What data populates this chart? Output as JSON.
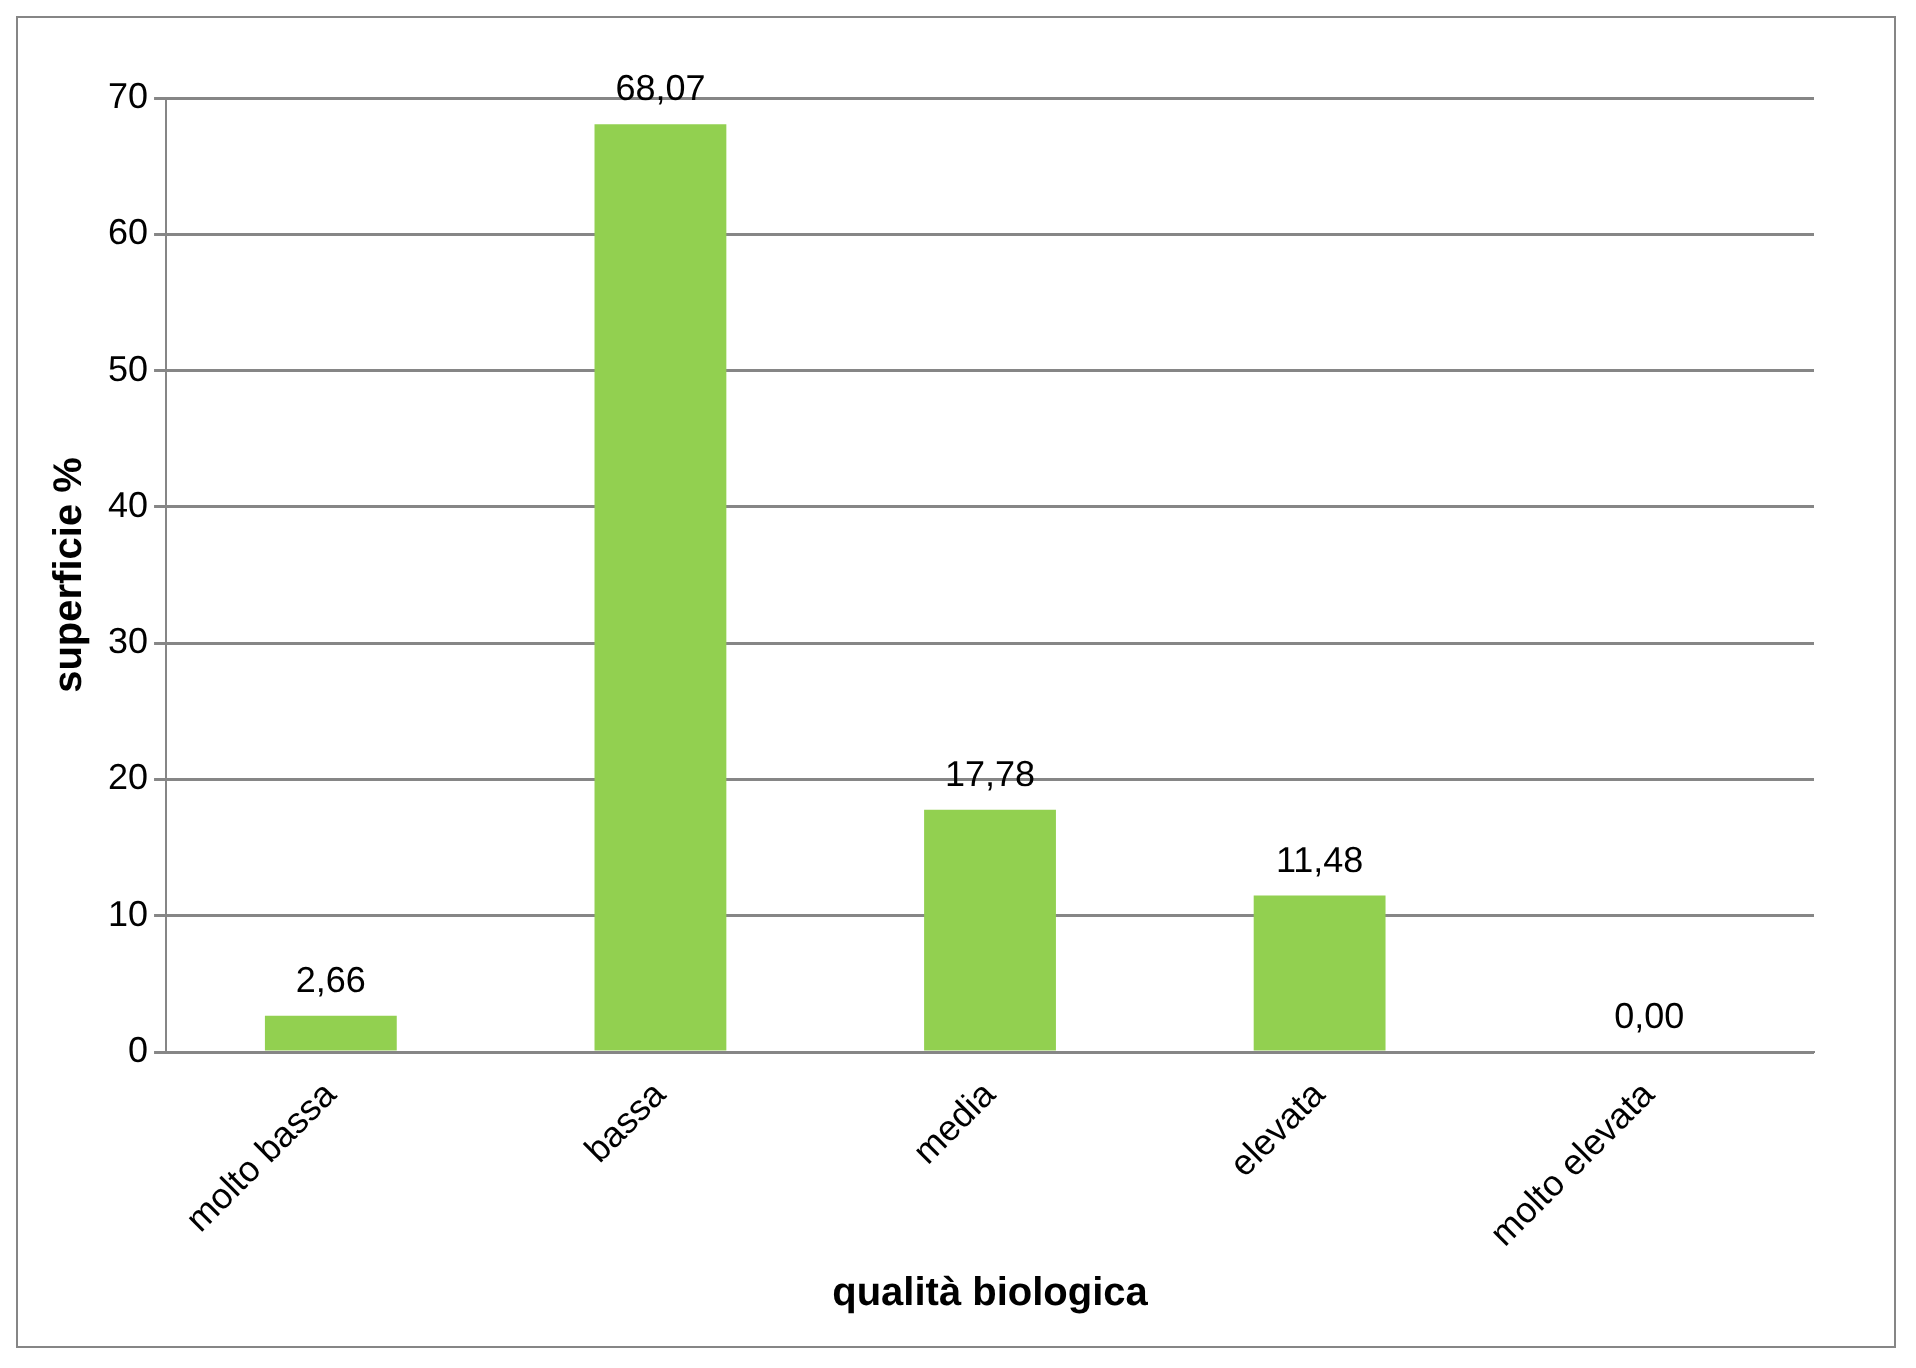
{
  "chart_data": {
    "type": "bar",
    "xlabel": "qualità biologica",
    "ylabel": "superficie %",
    "categories": [
      "molto bassa",
      "bassa",
      "media",
      "elevata",
      "molto elevata"
    ],
    "values": [
      2.66,
      68.07,
      17.78,
      11.48,
      0.0
    ],
    "value_labels": [
      "2,66",
      "68,07",
      "17,78",
      "11,48",
      "0,00"
    ],
    "color": "#92d050",
    "ylim": [
      0,
      70
    ],
    "yticks": [
      0,
      10,
      20,
      30,
      40,
      50,
      60,
      70
    ],
    "grid": "y",
    "legend": false
  }
}
